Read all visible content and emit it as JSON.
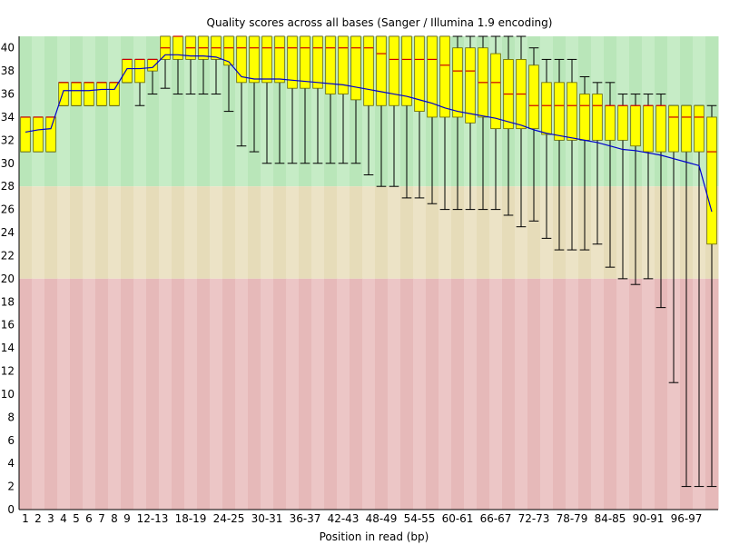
{
  "chart_data": {
    "type": "boxplot",
    "title": "Quality scores across all bases (Sanger / Illumina 1.9 encoding)",
    "xlabel": "Position in read (bp)",
    "ylabel": "",
    "ylim": [
      0,
      41
    ],
    "yticks": [
      0,
      2,
      4,
      6,
      8,
      10,
      12,
      14,
      16,
      18,
      20,
      22,
      24,
      26,
      28,
      30,
      32,
      34,
      36,
      38,
      40
    ],
    "bands": [
      {
        "from": 28,
        "to": 41,
        "color": "#b9e6b9",
        "color_alt": "#c6ecc6"
      },
      {
        "from": 20,
        "to": 28,
        "color": "#e6dcb9",
        "color_alt": "#ece3c6"
      },
      {
        "from": 0,
        "to": 20,
        "color": "#e6b9b9",
        "color_alt": "#ecc6c6"
      }
    ],
    "colors": {
      "box": "#ffff00",
      "box_border": "#666600",
      "median": "#cc0000",
      "mean": "#0000cc",
      "whisker": "#000000"
    },
    "categories": [
      "1",
      "2",
      "3",
      "4",
      "5",
      "6",
      "7",
      "8",
      "9",
      "10-11",
      "12-13",
      "14-15",
      "16-17",
      "18-19",
      "20-21",
      "22-23",
      "24-25",
      "26-27",
      "28-29",
      "30-31",
      "32-33",
      "34-35",
      "36-37",
      "38-39",
      "40-41",
      "42-43",
      "44-45",
      "46-47",
      "48-49",
      "50-51",
      "52-53",
      "54-55",
      "56-57",
      "58-59",
      "60-61",
      "62-63",
      "64-65",
      "66-67",
      "68-69",
      "70-71",
      "72-73",
      "74-75",
      "76-77",
      "78-79",
      "80-81",
      "82-83",
      "84-85",
      "86-87",
      "88-89",
      "90-91",
      "92-93",
      "94-95",
      "96-97",
      "98-99",
      "100"
    ],
    "xtick_labels": [
      "1",
      "2",
      "3",
      "4",
      "5",
      "6",
      "7",
      "8",
      "9",
      "12-13",
      "18-19",
      "24-25",
      "30-31",
      "36-37",
      "42-43",
      "48-49",
      "54-55",
      "60-61",
      "66-67",
      "72-73",
      "78-79",
      "84-85",
      "90-91",
      "96-97"
    ],
    "q1": [
      31,
      31,
      31,
      35,
      35,
      35,
      35,
      35,
      37,
      37,
      38,
      39,
      39,
      39,
      39,
      39,
      38.5,
      37,
      37,
      37,
      37,
      36.5,
      36.5,
      36.5,
      36,
      36,
      35.5,
      35,
      35,
      35,
      35,
      34.5,
      34,
      34,
      34,
      33.5,
      34,
      33,
      33,
      33,
      33,
      32.5,
      32,
      32,
      32,
      32,
      32,
      32,
      31.5,
      31,
      31,
      31,
      31,
      31,
      23
    ],
    "median": [
      34,
      34,
      34,
      37,
      37,
      37,
      37,
      37,
      39,
      39,
      39,
      40,
      41,
      40,
      40,
      40,
      40,
      40,
      40,
      40,
      40,
      40,
      40,
      40,
      40,
      40,
      40,
      40,
      39.5,
      39,
      39,
      39,
      39,
      38.5,
      38,
      38,
      37,
      37,
      36,
      36,
      35,
      35,
      35,
      35,
      35,
      35,
      35,
      35,
      35,
      35,
      35,
      34,
      34,
      34,
      31
    ],
    "q3": [
      34,
      34,
      34,
      37,
      37,
      37,
      37,
      37,
      39,
      39,
      39,
      41,
      41,
      41,
      41,
      41,
      41,
      41,
      41,
      41,
      41,
      41,
      41,
      41,
      41,
      41,
      41,
      41,
      41,
      41,
      41,
      41,
      41,
      41,
      40,
      40,
      40,
      39.5,
      39,
      39,
      38.5,
      37,
      37,
      37,
      36,
      36,
      35,
      35,
      35,
      35,
      35,
      35,
      35,
      35,
      34
    ],
    "low": [
      31,
      31,
      31,
      35,
      35,
      35,
      35,
      35,
      37,
      35,
      36,
      36.5,
      36,
      36,
      36,
      36,
      34.5,
      31.5,
      31,
      30,
      30,
      30,
      30,
      30,
      30,
      30,
      30,
      29,
      28,
      28,
      27,
      27,
      26.5,
      26,
      26,
      26,
      26,
      26,
      25.5,
      24.5,
      25,
      23.5,
      22.5,
      22.5,
      22.5,
      23,
      21,
      20,
      19.5,
      20,
      17.5,
      11,
      2,
      2,
      2
    ],
    "high": [
      34,
      34,
      34,
      37,
      37,
      37,
      37,
      37,
      39,
      39,
      39,
      41,
      41,
      41,
      41,
      41,
      41,
      41,
      41,
      41,
      41,
      41,
      41,
      41,
      41,
      41,
      41,
      41,
      41,
      41,
      41,
      41,
      41,
      41,
      41,
      41,
      41,
      41,
      41,
      41,
      40,
      39,
      39,
      39,
      37.5,
      37,
      37,
      36,
      36,
      36,
      36,
      35,
      35,
      35,
      35
    ],
    "mean": [
      32.7,
      32.9,
      33.0,
      36.3,
      36.3,
      36.3,
      36.4,
      36.4,
      38.2,
      38.2,
      38.3,
      39.4,
      39.4,
      39.3,
      39.3,
      39.2,
      38.8,
      37.5,
      37.3,
      37.3,
      37.3,
      37.2,
      37.1,
      37.0,
      36.9,
      36.8,
      36.6,
      36.4,
      36.2,
      36.0,
      35.8,
      35.5,
      35.2,
      34.8,
      34.5,
      34.3,
      34.1,
      33.9,
      33.6,
      33.3,
      32.9,
      32.6,
      32.4,
      32.2,
      32.0,
      31.8,
      31.5,
      31.2,
      31.1,
      30.9,
      30.7,
      30.4,
      30.1,
      29.8,
      25.8
    ]
  }
}
